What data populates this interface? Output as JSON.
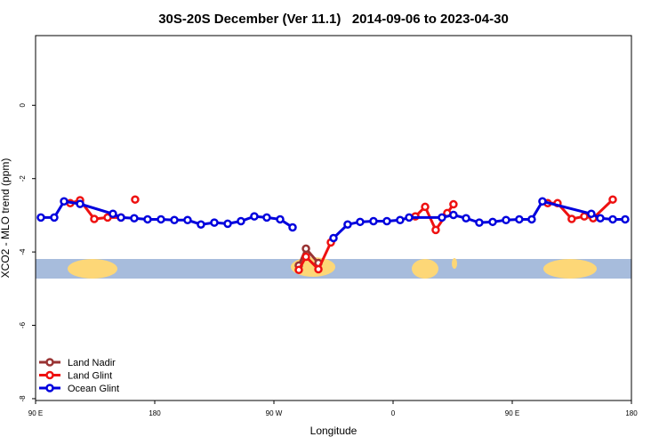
{
  "chart_data": {
    "type": "line",
    "title": "30S-20S December (Ver 11.1)   2014-09-06 to 2023-04-30",
    "x_label": "Longitude",
    "y_label": "XCO2 - MLO trend (ppm)",
    "xlim": [
      90,
      540
    ],
    "ylim": [
      -8.05,
      1.9
    ],
    "xticks": [
      {
        "value": 90,
        "label": "90 E"
      },
      180,
      {
        "value": 270,
        "label": "90 W"
      },
      {
        "value": 360,
        "label": "0"
      },
      {
        "value": 450,
        "label": "90 E"
      },
      {
        "value": 540,
        "label": "180"
      }
    ],
    "yticks": [
      0,
      -2,
      -4,
      -6,
      -8
    ],
    "legend": "bottom-left",
    "series": [
      {
        "name": "Land Nadir",
        "color": "#993333",
        "x": [
          288.8,
          294.2,
          303.6
        ],
        "values": [
          -4.37,
          -3.91,
          -4.3
        ]
      },
      {
        "name": "Land Glint",
        "color": "#ee1111",
        "x": [
          116.2,
          123.6,
          134.3,
          144.4,
          154.5,
          null,
          165.2,
          null,
          288.8,
          294.2,
          303.6,
          313.0,
          null,
          376.8,
          384.2,
          392.2,
          400.9,
          405.6,
          null,
          476.8,
          484.2,
          494.9,
          504.4,
          511.1,
          525.9
        ],
        "values": [
          -2.67,
          -2.59,
          -3.1,
          -3.06,
          -3.06,
          null,
          -2.57,
          null,
          -4.49,
          -4.13,
          -4.47,
          -3.74,
          null,
          -3.03,
          -2.77,
          -3.4,
          -2.94,
          -2.7,
          null,
          -2.67,
          -2.67,
          -3.1,
          -3.03,
          -3.08,
          -2.57
        ]
      },
      {
        "name": "Ocean Glint",
        "color": "#0000dd",
        "x": [
          94.0,
          104.1,
          111.5,
          123.6,
          148.4,
          154.5,
          164.5,
          174.6,
          184.7,
          194.8,
          204.8,
          214.9,
          225.0,
          235.1,
          245.1,
          255.2,
          264.6,
          274.7,
          284.1,
          null,
          315.0,
          325.7,
          335.1,
          345.2,
          355.3,
          365.3,
          372.1,
          396.9,
          405.6,
          415.1,
          425.1,
          435.2,
          445.3,
          455.3,
          464.7,
          472.8,
          509.7,
          516.5,
          525.9,
          535.3
        ],
        "values": [
          -3.06,
          -3.06,
          -2.62,
          -2.69,
          -2.96,
          -3.06,
          -3.08,
          -3.11,
          -3.11,
          -3.13,
          -3.13,
          -3.25,
          -3.2,
          -3.23,
          -3.16,
          -3.03,
          -3.06,
          -3.11,
          -3.33,
          null,
          -3.62,
          -3.25,
          -3.18,
          -3.16,
          -3.16,
          -3.13,
          -3.06,
          -3.06,
          -2.99,
          -3.08,
          -3.2,
          -3.18,
          -3.13,
          -3.11,
          -3.11,
          -2.62,
          -2.96,
          -3.08,
          -3.11,
          -3.11
        ]
      }
    ]
  }
}
